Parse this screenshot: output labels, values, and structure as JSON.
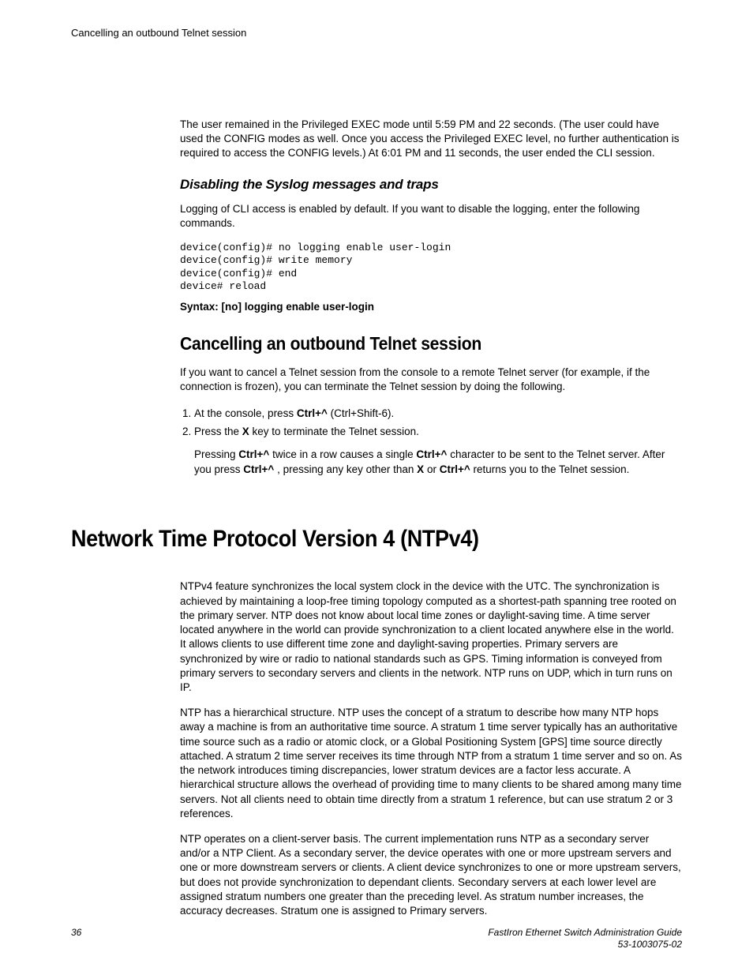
{
  "runningHead": "Cancelling an outbound Telnet session",
  "intro_para": "The user remained in the Privileged EXEC mode until 5:59 PM and 22 seconds. (The user could have used the CONFIG modes as well. Once you access the Privileged EXEC level, no further authentication is required to access the CONFIG levels.) At 6:01 PM and 11 seconds, the user ended the CLI session.",
  "sec_disable": {
    "title": "Disabling the Syslog messages and traps",
    "para": "Logging of CLI access is enabled by default. If you want to disable the logging, enter the following commands.",
    "code": "device(config)# no logging enable user-login\ndevice(config)# write memory\ndevice(config)# end\ndevice# reload",
    "syntax_label": "Syntax: [no] logging enable user-login"
  },
  "sec_cancel": {
    "title": "Cancelling an outbound Telnet session",
    "para": "If you want to cancel a Telnet session from the console to a remote Telnet server (for example, if the connection is frozen), you can terminate the Telnet session by doing the following.",
    "step1_a": "At the console, press ",
    "step1_b": "Ctrl+^",
    "step1_c": " (Ctrl+Shift-6).",
    "step2_a": "Press the ",
    "step2_b": "X",
    "step2_c": " key to terminate the Telnet session.",
    "note_a": "Pressing ",
    "note_b": "Ctrl+^",
    "note_c": " twice in a row causes a single ",
    "note_d": "Ctrl+^",
    "note_e": " character to be sent to the Telnet server. After you press ",
    "note_f": "Ctrl+^",
    "note_g": " , pressing any key other than ",
    "note_h": "X",
    "note_i": " or ",
    "note_j": "Ctrl+^",
    "note_k": " returns you to the Telnet session."
  },
  "sec_ntp": {
    "title": "Network Time Protocol Version 4 (NTPv4)",
    "p1": "NTPv4 feature synchronizes the local system clock in the device with the UTC. The synchronization is achieved by maintaining a loop-free timing topology computed as a shortest-path spanning tree rooted on the primary server. NTP does not know about local time zones or daylight-saving time. A time server located anywhere in the world can provide synchronization to a client located anywhere else in the world. It allows clients to use different time zone and daylight-saving properties. Primary servers are synchronized by wire or radio to national standards such as GPS. Timing information is conveyed from primary servers to secondary servers and clients in the network. NTP runs on UDP, which in turn runs on IP.",
    "p2": "NTP has a hierarchical structure. NTP uses the concept of a stratum to describe how many NTP hops away a machine is from an authoritative time source. A stratum 1 time server typically has an authoritative time source such as a radio or atomic clock, or a Global Positioning System [GPS] time source directly attached. A stratum 2 time server receives its time through NTP from a stratum 1 time server and so on. As the network introduces timing discrepancies, lower stratum devices are a factor less accurate. A hierarchical structure allows the overhead of providing time to many clients to be shared among many time servers. Not all clients need to obtain time directly from a stratum 1 reference, but can use stratum 2 or 3 references.",
    "p3": "NTP operates on a client-server basis. The current implementation runs NTP as a secondary server and/or a NTP Client. As a secondary server, the device operates with one or more upstream servers and one or more downstream servers or clients. A client device synchronizes to one or more upstream servers, but does not provide synchronization to dependant clients. Secondary servers at each lower level are assigned stratum numbers one greater than the preceding level. As stratum number increases, the accuracy decreases. Stratum one is assigned to Primary servers."
  },
  "footer": {
    "page": "36",
    "title": "FastIron Ethernet Switch Administration Guide",
    "docnum": "53-1003075-02"
  }
}
